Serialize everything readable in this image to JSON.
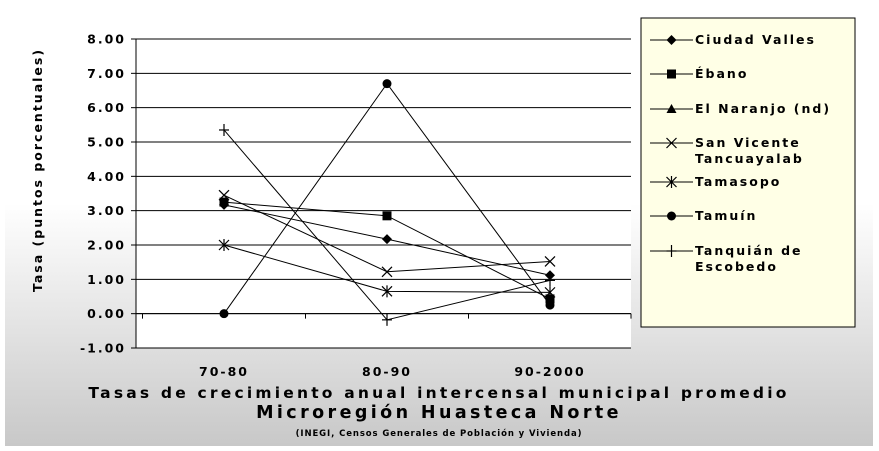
{
  "chart_data": {
    "type": "line",
    "title": "Tasas de crecimiento anual intercensal municipal promedio",
    "subtitle": "Microregión Huasteca Norte",
    "source": "(INEGI, Censos Generales de Población y Vivienda)",
    "ylabel": "Tasa (puntos porcentuales)",
    "xlabel": "",
    "categories": [
      "70-80",
      "80-90",
      "90-2000"
    ],
    "ylim": [
      -1.0,
      8.0
    ],
    "yticks": [
      "8.00",
      "7.00",
      "6.00",
      "5.00",
      "4.00",
      "3.00",
      "2.00",
      "1.00",
      "0.00",
      "-1.00"
    ],
    "grid": true,
    "legend_position": "right",
    "series": [
      {
        "name": "Ciudad Valles",
        "legend_lines": [
          "Ciudad Valles"
        ],
        "marker": "diamond",
        "values": [
          3.17,
          2.17,
          1.12
        ]
      },
      {
        "name": "Ébano",
        "legend_lines": [
          "Ébano"
        ],
        "marker": "square",
        "values": [
          3.25,
          2.85,
          0.43
        ]
      },
      {
        "name": "El Naranjo (nd)",
        "legend_lines": [
          "El Naranjo (nd)"
        ],
        "marker": "triangle",
        "values": [
          null,
          null,
          null
        ]
      },
      {
        "name": "San Vicente Tancuayalab",
        "legend_lines": [
          "San Vicente",
          "Tancuayalab"
        ],
        "marker": "x",
        "values": [
          3.45,
          1.22,
          1.52
        ]
      },
      {
        "name": "Tamasopo",
        "legend_lines": [
          "Tamasopo"
        ],
        "marker": "star",
        "values": [
          2.0,
          0.65,
          0.62
        ]
      },
      {
        "name": "Tamuín",
        "legend_lines": [
          "Tamuín"
        ],
        "marker": "circle",
        "values": [
          0.0,
          6.7,
          0.25
        ]
      },
      {
        "name": "Tanquián de Escobedo",
        "legend_lines": [
          "Tanquián de",
          "Escobedo"
        ],
        "marker": "plus",
        "values": [
          5.35,
          -0.18,
          0.97
        ]
      }
    ]
  }
}
